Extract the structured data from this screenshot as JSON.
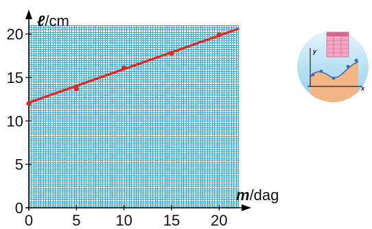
{
  "chart_data": {
    "type": "scatter",
    "title": "",
    "xlabel_symbol": "m",
    "xlabel_unit": "/dag",
    "ylabel_symbol": "ℓ",
    "ylabel_unit": "/cm",
    "xlim": [
      0,
      22
    ],
    "ylim": [
      0,
      21
    ],
    "x_ticks": [
      0,
      5,
      10,
      15,
      20
    ],
    "y_ticks": [
      0,
      5,
      10,
      15,
      20
    ],
    "grid": true,
    "grid_minor_step_x": 1,
    "grid_minor_step_y": 1,
    "series": [
      {
        "points": [
          {
            "x": 0,
            "y": 12.0
          },
          {
            "x": 5,
            "y": 13.7
          },
          {
            "x": 10,
            "y": 16.1
          },
          {
            "x": 15,
            "y": 17.8
          },
          {
            "x": 20,
            "y": 19.9
          }
        ],
        "fit_line": {
          "x1": 0,
          "y1": 12.1,
          "x2": 22,
          "y2": 20.6
        },
        "color": "#e02a1c"
      }
    ],
    "colors": {
      "grid": "#2aa7dc",
      "axis": "#000000",
      "line": "#e02a1c"
    }
  },
  "decoration": {
    "icon": "spreadsheet-graph-icon",
    "icon_y_label": "y",
    "icon_x_label": "x"
  }
}
